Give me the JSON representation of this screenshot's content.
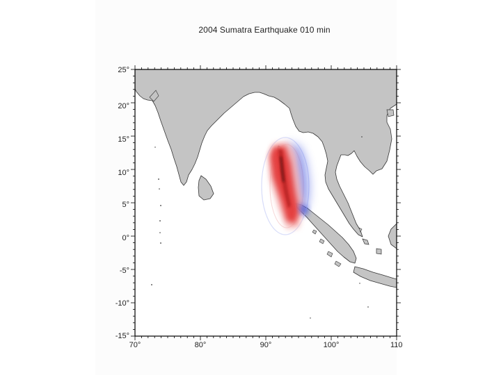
{
  "title": "2004 Sumatra Earthquake  010 min",
  "map": {
    "lon_range": [
      70,
      110
    ],
    "lat_range": [
      -15,
      25
    ],
    "x_tick_labels": [
      "70°",
      "80°",
      "90°",
      "100°",
      "110"
    ],
    "y_tick_labels": [
      "25°",
      "20°",
      "15°",
      "10°",
      "5°",
      "0°",
      "-5°",
      "-10°",
      "-15°"
    ],
    "colors": {
      "land": "#c4c4c4",
      "coast": "#333333",
      "ocean": "#ffffff",
      "wave_positive": "#e23030",
      "wave_negative": "#3a4fe0"
    }
  }
}
